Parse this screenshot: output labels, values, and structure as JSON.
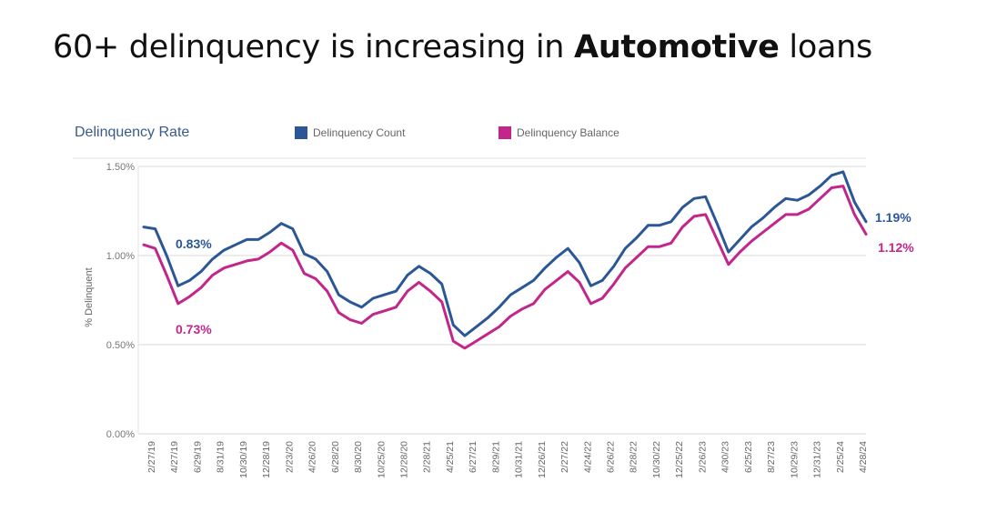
{
  "slide": {
    "title_prefix": "60+ delinquency is increasing in ",
    "title_bold": "Automotive",
    "title_suffix": " loans"
  },
  "chart_data": {
    "type": "line",
    "title": "Delinquency Rate",
    "ylabel": "% Delinquent",
    "xlabel": "",
    "ylim": [
      0,
      1.5
    ],
    "y_ticks": [
      "0.00%",
      "0.50%",
      "1.00%",
      "1.50%"
    ],
    "y_tick_values": [
      0,
      0.5,
      1.0,
      1.5
    ],
    "grid": true,
    "legend_position": "top",
    "x_tick_labels": [
      "2/27/19",
      "4/27/19",
      "6/29/19",
      "8/31/19",
      "10/30/19",
      "12/28/19",
      "2/23/20",
      "4/26/20",
      "6/28/20",
      "8/30/20",
      "10/25/20",
      "12/28/20",
      "2/28/21",
      "4/25/21",
      "6/27/21",
      "8/29/21",
      "10/31/21",
      "12/26/21",
      "2/27/22",
      "4/24/22",
      "6/26/22",
      "8/28/22",
      "10/30/22",
      "12/25/22",
      "2/26/23",
      "4/30/23",
      "6/25/23",
      "8/27/23",
      "10/29/23",
      "12/31/23",
      "2/25/24",
      "4/28/24"
    ],
    "series": [
      {
        "name": "Delinquency Count",
        "color": "#2b5796",
        "values": [
          1.16,
          1.15,
          1.0,
          0.83,
          0.86,
          0.91,
          0.98,
          1.03,
          1.06,
          1.09,
          1.09,
          1.13,
          1.18,
          1.15,
          1.01,
          0.98,
          0.91,
          0.78,
          0.74,
          0.71,
          0.76,
          0.78,
          0.8,
          0.89,
          0.94,
          0.9,
          0.84,
          0.61,
          0.55,
          0.6,
          0.65,
          0.71,
          0.78,
          0.82,
          0.86,
          0.93,
          0.99,
          1.04,
          0.96,
          0.83,
          0.86,
          0.94,
          1.04,
          1.1,
          1.17,
          1.17,
          1.19,
          1.27,
          1.32,
          1.33,
          1.18,
          1.02,
          1.09,
          1.16,
          1.21,
          1.27,
          1.32,
          1.31,
          1.34,
          1.39,
          1.45,
          1.47,
          1.3,
          1.19
        ],
        "end_label": "1.19%",
        "callout_label": "0.83%"
      },
      {
        "name": "Delinquency Balance",
        "color": "#c2268a",
        "values": [
          1.06,
          1.04,
          0.89,
          0.73,
          0.77,
          0.82,
          0.89,
          0.93,
          0.95,
          0.97,
          0.98,
          1.02,
          1.07,
          1.03,
          0.9,
          0.87,
          0.8,
          0.68,
          0.64,
          0.62,
          0.67,
          0.69,
          0.71,
          0.8,
          0.85,
          0.8,
          0.74,
          0.52,
          0.48,
          0.52,
          0.56,
          0.6,
          0.66,
          0.7,
          0.73,
          0.81,
          0.86,
          0.91,
          0.85,
          0.73,
          0.76,
          0.84,
          0.93,
          0.99,
          1.05,
          1.05,
          1.07,
          1.16,
          1.22,
          1.23,
          1.09,
          0.95,
          1.02,
          1.08,
          1.13,
          1.18,
          1.23,
          1.23,
          1.26,
          1.32,
          1.38,
          1.39,
          1.23,
          1.12
        ],
        "end_label": "1.12%",
        "callout_label": "0.73%"
      }
    ]
  }
}
